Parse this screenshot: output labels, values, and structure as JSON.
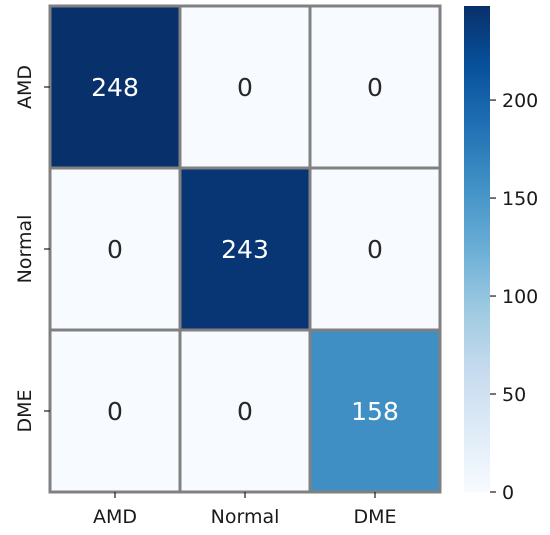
{
  "chart_data": {
    "type": "heatmap",
    "title": "",
    "xlabel": "",
    "ylabel": "",
    "row_labels": [
      "AMD",
      "Normal",
      "DME"
    ],
    "col_labels": [
      "AMD",
      "Normal",
      "DME"
    ],
    "values": [
      [
        248,
        0,
        0
      ],
      [
        0,
        243,
        0
      ],
      [
        0,
        0,
        158
      ]
    ],
    "colormap": "Blues",
    "colorbar": {
      "range": [
        0,
        248
      ],
      "ticks": [
        "0",
        "50",
        "100",
        "150",
        "200"
      ]
    },
    "cell_border_color": "#808080",
    "text_color_dark": "#262626",
    "text_color_light": "#ffffff"
  }
}
